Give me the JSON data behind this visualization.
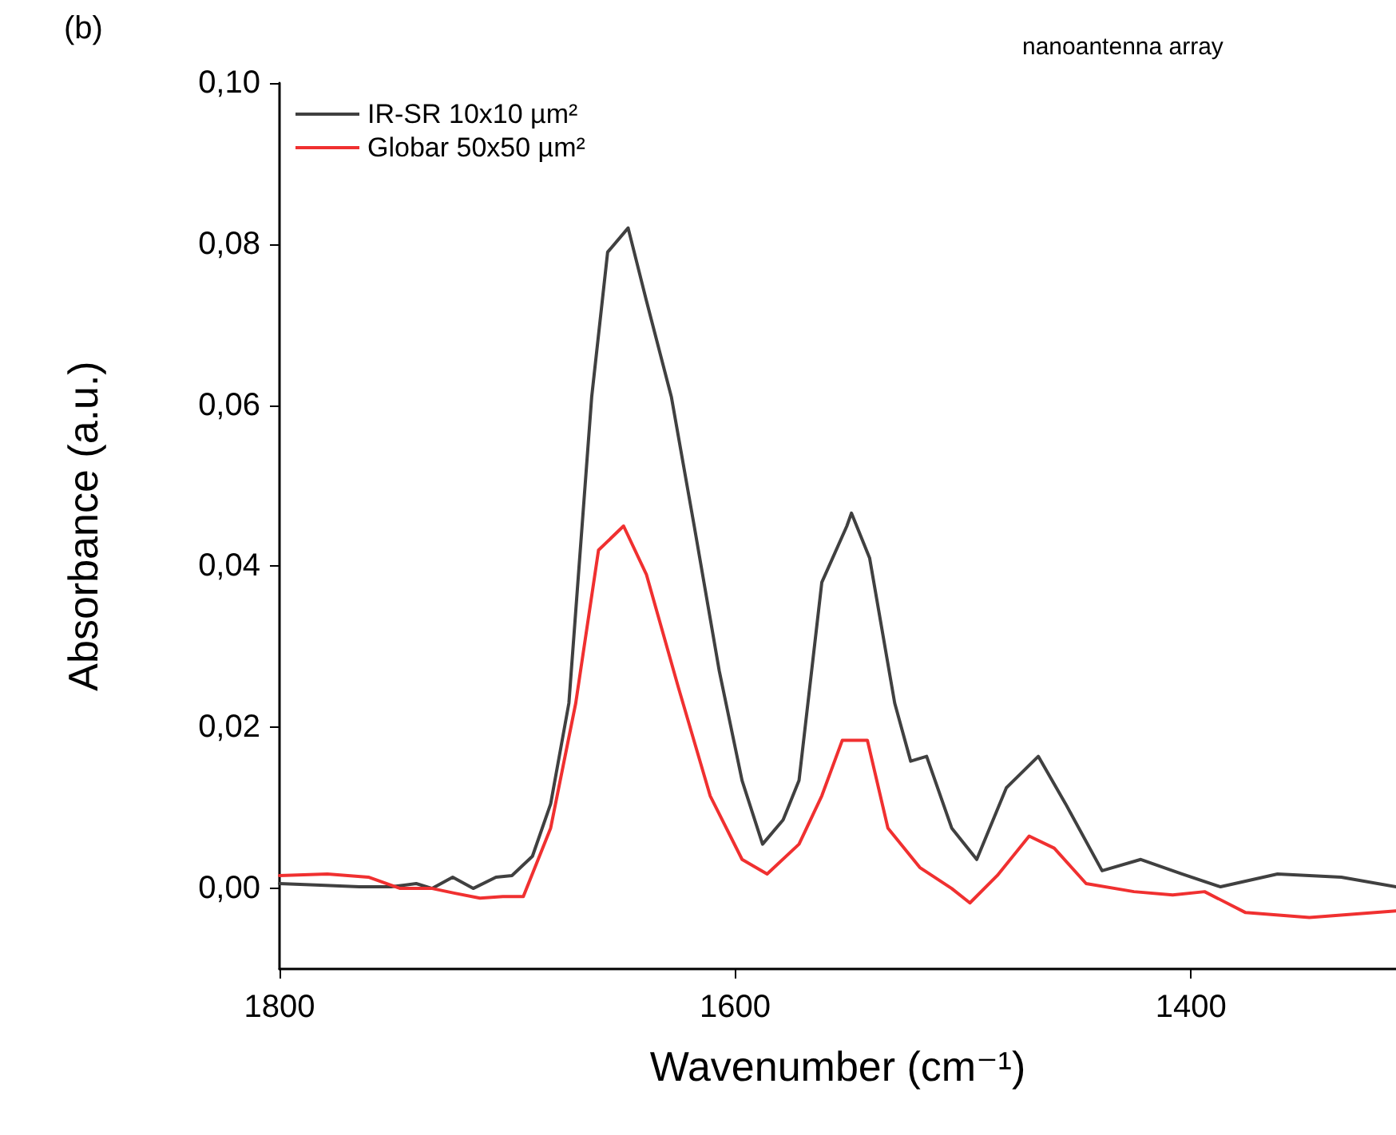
{
  "chart_data": {
    "type": "line",
    "xlabel": "Wavenumber (cm⁻¹)",
    "ylabel": "Absorbance (a.u.)",
    "annotations": [
      "(b)",
      "nanoantenna array"
    ],
    "xlim": [
      1800,
      1310
    ],
    "xticks": [
      1800,
      1600,
      1400
    ],
    "ylim": [
      -0.01,
      0.1
    ],
    "yticks": [
      {
        "value": 0,
        "label": "0,00"
      },
      {
        "value": 0.02,
        "label": "0,02"
      },
      {
        "value": 0.04,
        "label": "0,04"
      },
      {
        "value": 0.06,
        "label": "0,06"
      },
      {
        "value": 0.08,
        "label": "0,08"
      },
      {
        "value": 0.1,
        "label": "0,10"
      }
    ],
    "grid": false,
    "legend": "top left",
    "marker": "none",
    "line_style": "solid",
    "series": [
      {
        "name": "IR-SR 10x10 µm²",
        "color": "#404040",
        "x": [
          1800,
          1782,
          1765,
          1751,
          1740,
          1733,
          1724,
          1715,
          1705,
          1698,
          1689,
          1681,
          1673,
          1663,
          1656,
          1647,
          1639,
          1628,
          1618,
          1607,
          1597,
          1588,
          1579,
          1572,
          1562,
          1551,
          1549,
          1541,
          1530,
          1523,
          1516,
          1505,
          1494,
          1481,
          1467,
          1455,
          1439,
          1422,
          1404,
          1387,
          1362,
          1334,
          1310
        ],
        "values": [
          0.0006,
          0.0004,
          0.0002,
          0.0002,
          0.0006,
          0.0,
          0.0014,
          0.0,
          0.0014,
          0.0016,
          0.004,
          0.0105,
          0.023,
          0.061,
          0.079,
          0.082,
          0.073,
          0.061,
          0.045,
          0.027,
          0.0134,
          0.0055,
          0.0085,
          0.0134,
          0.038,
          0.045,
          0.0466,
          0.041,
          0.023,
          0.0158,
          0.0164,
          0.0075,
          0.0036,
          0.0125,
          0.0164,
          0.0105,
          0.0022,
          0.0036,
          0.0018,
          0.0002,
          0.0018,
          0.0014,
          0.0002
        ]
      },
      {
        "name": "Globar 50x50 µm²",
        "color": "#f03030",
        "x": [
          1800,
          1779,
          1761,
          1747,
          1733,
          1723,
          1712,
          1702,
          1693,
          1681,
          1670,
          1660,
          1649,
          1639,
          1625,
          1611,
          1597,
          1586,
          1572,
          1562,
          1553,
          1542,
          1533,
          1519,
          1505,
          1497,
          1485,
          1471,
          1460,
          1446,
          1425,
          1408,
          1394,
          1376,
          1348,
          1310
        ],
        "values": [
          0.0016,
          0.0018,
          0.0014,
          0.0,
          0.0,
          -0.0006,
          -0.0012,
          -0.001,
          -0.001,
          0.0075,
          0.023,
          0.042,
          0.045,
          0.039,
          0.025,
          0.0115,
          0.0036,
          0.0018,
          0.0055,
          0.0115,
          0.0184,
          0.0184,
          0.0075,
          0.0026,
          0.0,
          -0.0018,
          0.0016,
          0.0065,
          0.005,
          0.0006,
          -0.0004,
          -0.0008,
          -0.0004,
          -0.003,
          -0.0036,
          -0.0028
        ]
      }
    ]
  }
}
